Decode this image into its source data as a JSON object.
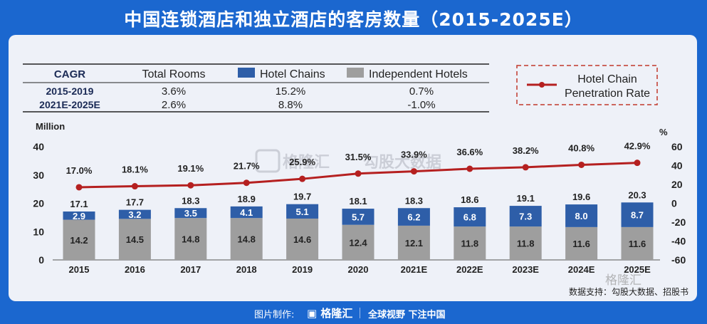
{
  "title": "中国连锁酒店和独立酒店的客房数量（2015-2025E）",
  "cagr_table": {
    "headers": [
      "CAGR",
      "Total Rooms",
      "Hotel Chains",
      "Independent Hotels"
    ],
    "rows": [
      {
        "period": "2015-2019",
        "total": "3.6%",
        "chains": "15.2%",
        "independent": "0.7%"
      },
      {
        "period": "2021E-2025E",
        "total": "2.6%",
        "chains": "8.8%",
        "independent": "-1.0%"
      }
    ]
  },
  "legend_line": "Hotel Chain Penetration Rate",
  "left_unit": "Million",
  "right_unit": "%",
  "source": "数据支持：勾股大数据、招股书",
  "footer": {
    "made_by": "图片制作:",
    "brand": "格隆汇",
    "slogan": "全球视野 下注中国"
  },
  "watermarks": [
    "格隆汇",
    "勾股大数据",
    "格隆汇"
  ],
  "colors": {
    "chains": "#2e5ea8",
    "independent": "#9e9e9e",
    "line": "#b52020",
    "background": "#1b67cf"
  },
  "chart_data": {
    "type": "bar",
    "stacked": true,
    "categories": [
      "2015",
      "2016",
      "2017",
      "2018",
      "2019",
      "2020",
      "2021E",
      "2022E",
      "2023E",
      "2024E",
      "2025E"
    ],
    "series": [
      {
        "name": "Independent Hotels",
        "values": [
          14.2,
          14.5,
          14.8,
          14.8,
          14.6,
          12.4,
          12.1,
          11.8,
          11.8,
          11.6,
          11.6
        ]
      },
      {
        "name": "Hotel Chains",
        "values": [
          2.9,
          3.2,
          3.5,
          4.1,
          5.1,
          5.7,
          6.2,
          6.8,
          7.3,
          8.0,
          8.7
        ]
      }
    ],
    "totals": [
      17.1,
      17.7,
      18.3,
      18.9,
      19.7,
      18.1,
      18.3,
      18.6,
      19.1,
      19.6,
      20.3
    ],
    "line": {
      "name": "Hotel Chain Penetration Rate",
      "values": [
        17.0,
        18.1,
        19.1,
        21.7,
        25.9,
        31.5,
        33.9,
        36.6,
        38.2,
        40.8,
        42.9
      ],
      "axis": "right"
    },
    "ylim_left": [
      0,
      40
    ],
    "yticks_left": [
      0,
      10,
      20,
      30,
      40
    ],
    "ylim_right": [
      -60,
      60
    ],
    "yticks_right": [
      -60,
      -40,
      -20,
      0,
      20,
      40,
      60
    ]
  }
}
